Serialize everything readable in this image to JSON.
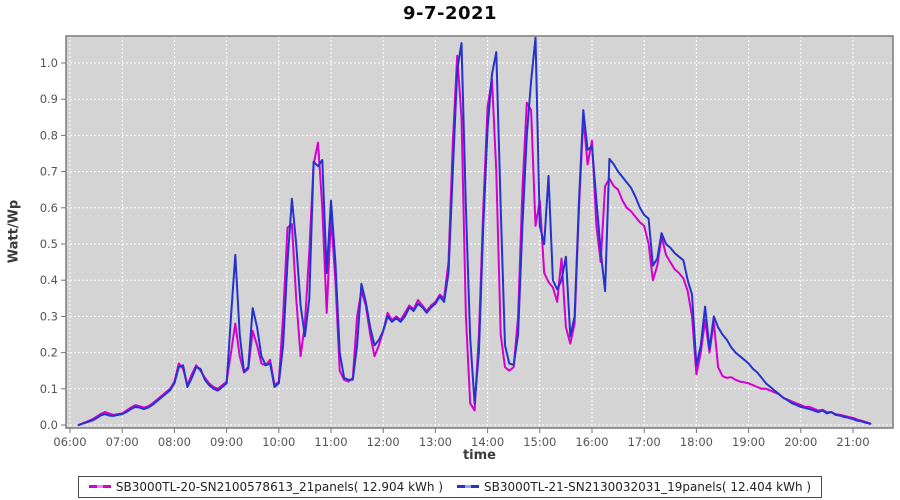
{
  "title": "9-7-2021",
  "colors": {
    "page_bg": "#ffffff",
    "plot_bg": "#d4d4d4",
    "plot_border": "#7a7a7a",
    "grid": "#ffffff",
    "tick": "#777777",
    "tick_label": "#555555",
    "axis_label": "#3a3a3a",
    "series1": "#d400d0",
    "series2": "#2433cc",
    "legend_border": "#4a4a4a"
  },
  "chart_data": {
    "type": "line",
    "title": "9-7-2021",
    "xlabel": "time",
    "ylabel": "Watt/Wp",
    "ylim": [
      0.0,
      1.083
    ],
    "xlim_hours": [
      5.92,
      21.77
    ],
    "grid": true,
    "legend_position": "bottom",
    "y_ticks": [
      "0.0",
      "0.1",
      "0.2",
      "0.3",
      "0.4",
      "0.5",
      "0.6",
      "0.7",
      "0.8",
      "0.9",
      "1.0"
    ],
    "x_ticks": [
      "06:00",
      "07:00",
      "08:00",
      "09:00",
      "10:00",
      "11:00",
      "12:00",
      "13:00",
      "14:00",
      "15:00",
      "16:00",
      "17:00",
      "18:00",
      "19:00",
      "20:00",
      "21:00"
    ],
    "times": [
      "06:10",
      "06:15",
      "06:20",
      "06:25",
      "06:30",
      "06:35",
      "06:40",
      "06:45",
      "06:50",
      "06:55",
      "07:00",
      "07:05",
      "07:10",
      "07:15",
      "07:20",
      "07:25",
      "07:30",
      "07:35",
      "07:40",
      "07:45",
      "07:50",
      "07:55",
      "08:00",
      "08:05",
      "08:10",
      "08:15",
      "08:20",
      "08:25",
      "08:30",
      "08:35",
      "08:40",
      "08:45",
      "08:50",
      "08:55",
      "09:00",
      "09:05",
      "09:10",
      "09:15",
      "09:20",
      "09:25",
      "09:30",
      "09:35",
      "09:40",
      "09:45",
      "09:50",
      "09:55",
      "10:00",
      "10:05",
      "10:10",
      "10:15",
      "10:20",
      "10:25",
      "10:30",
      "10:35",
      "10:40",
      "10:45",
      "10:50",
      "10:55",
      "11:00",
      "11:05",
      "11:10",
      "11:15",
      "11:20",
      "11:25",
      "11:30",
      "11:35",
      "11:40",
      "11:45",
      "11:50",
      "11:55",
      "12:00",
      "12:05",
      "12:10",
      "12:15",
      "12:20",
      "12:25",
      "12:30",
      "12:35",
      "12:40",
      "12:45",
      "12:50",
      "12:55",
      "13:00",
      "13:05",
      "13:10",
      "13:15",
      "13:20",
      "13:25",
      "13:30",
      "13:35",
      "13:40",
      "13:45",
      "13:50",
      "13:55",
      "14:00",
      "14:05",
      "14:10",
      "14:15",
      "14:20",
      "14:25",
      "14:30",
      "14:35",
      "14:40",
      "14:45",
      "14:50",
      "14:55",
      "15:00",
      "15:05",
      "15:10",
      "15:15",
      "15:20",
      "15:25",
      "15:30",
      "15:35",
      "15:40",
      "15:45",
      "15:50",
      "15:55",
      "16:00",
      "16:05",
      "16:10",
      "16:15",
      "16:20",
      "16:25",
      "16:30",
      "16:35",
      "16:40",
      "16:45",
      "16:50",
      "16:55",
      "17:00",
      "17:05",
      "17:10",
      "17:15",
      "17:20",
      "17:25",
      "17:30",
      "17:35",
      "17:40",
      "17:45",
      "17:50",
      "17:55",
      "18:00",
      "18:05",
      "18:10",
      "18:15",
      "18:20",
      "18:25",
      "18:30",
      "18:35",
      "18:40",
      "18:45",
      "18:50",
      "18:55",
      "19:00",
      "19:05",
      "19:10",
      "19:15",
      "19:20",
      "19:25",
      "19:30",
      "19:35",
      "19:40",
      "19:45",
      "19:50",
      "19:55",
      "20:00",
      "20:05",
      "20:10",
      "20:15",
      "20:20",
      "20:25",
      "20:30",
      "20:35",
      "20:40",
      "20:45",
      "20:50",
      "20:55",
      "21:00",
      "21:05",
      "21:10",
      "21:15",
      "21:20"
    ],
    "series": [
      {
        "name": "SB3000TL-20-SN2100578613_21panels( 12.904 kWh )",
        "color": "#d400d0",
        "values": [
          0.0,
          0.005,
          0.01,
          0.015,
          0.022,
          0.03,
          0.036,
          0.032,
          0.028,
          0.03,
          0.032,
          0.04,
          0.048,
          0.055,
          0.052,
          0.048,
          0.052,
          0.06,
          0.07,
          0.08,
          0.09,
          0.1,
          0.12,
          0.17,
          0.155,
          0.11,
          0.14,
          0.165,
          0.15,
          0.13,
          0.115,
          0.105,
          0.1,
          0.11,
          0.12,
          0.2,
          0.28,
          0.19,
          0.145,
          0.155,
          0.26,
          0.22,
          0.17,
          0.165,
          0.18,
          0.11,
          0.12,
          0.3,
          0.545,
          0.555,
          0.35,
          0.19,
          0.28,
          0.48,
          0.72,
          0.78,
          0.6,
          0.31,
          0.575,
          0.4,
          0.15,
          0.125,
          0.12,
          0.13,
          0.3,
          0.37,
          0.33,
          0.25,
          0.19,
          0.22,
          0.26,
          0.31,
          0.29,
          0.3,
          0.29,
          0.31,
          0.33,
          0.32,
          0.345,
          0.33,
          0.315,
          0.33,
          0.34,
          0.36,
          0.35,
          0.45,
          0.78,
          1.02,
          0.85,
          0.3,
          0.06,
          0.04,
          0.25,
          0.6,
          0.88,
          0.955,
          0.7,
          0.25,
          0.16,
          0.15,
          0.16,
          0.3,
          0.65,
          0.89,
          0.87,
          0.55,
          0.62,
          0.42,
          0.395,
          0.38,
          0.34,
          0.46,
          0.27,
          0.225,
          0.28,
          0.6,
          0.85,
          0.72,
          0.785,
          0.55,
          0.45,
          0.66,
          0.68,
          0.66,
          0.65,
          0.62,
          0.6,
          0.59,
          0.575,
          0.56,
          0.55,
          0.5,
          0.4,
          0.44,
          0.52,
          0.47,
          0.45,
          0.43,
          0.42,
          0.405,
          0.37,
          0.3,
          0.14,
          0.2,
          0.29,
          0.2,
          0.285,
          0.16,
          0.135,
          0.13,
          0.132,
          0.125,
          0.12,
          0.118,
          0.115,
          0.11,
          0.105,
          0.1,
          0.1,
          0.095,
          0.09,
          0.085,
          0.075,
          0.07,
          0.065,
          0.06,
          0.055,
          0.05,
          0.05,
          0.045,
          0.04,
          0.042,
          0.035,
          0.036,
          0.03,
          0.028,
          0.025,
          0.022,
          0.02,
          0.015,
          0.012,
          0.008,
          0.004
        ]
      },
      {
        "name": "SB3000TL-21-SN2130032031_19panels( 12.404 kWh )",
        "color": "#2433cc",
        "values": [
          0.0,
          0.004,
          0.008,
          0.012,
          0.018,
          0.026,
          0.03,
          0.026,
          0.025,
          0.028,
          0.03,
          0.036,
          0.044,
          0.05,
          0.048,
          0.044,
          0.048,
          0.056,
          0.066,
          0.076,
          0.086,
          0.096,
          0.115,
          0.16,
          0.165,
          0.105,
          0.13,
          0.16,
          0.155,
          0.125,
          0.11,
          0.1,
          0.095,
          0.105,
          0.115,
          0.3,
          0.47,
          0.25,
          0.147,
          0.16,
          0.323,
          0.27,
          0.19,
          0.165,
          0.17,
          0.105,
          0.115,
          0.22,
          0.45,
          0.625,
          0.5,
          0.33,
          0.245,
          0.35,
          0.727,
          0.715,
          0.732,
          0.42,
          0.62,
          0.45,
          0.2,
          0.13,
          0.125,
          0.125,
          0.22,
          0.39,
          0.34,
          0.27,
          0.22,
          0.235,
          0.26,
          0.3,
          0.285,
          0.295,
          0.285,
          0.3,
          0.325,
          0.315,
          0.335,
          0.325,
          0.31,
          0.325,
          0.335,
          0.355,
          0.34,
          0.42,
          0.7,
          0.98,
          1.055,
          0.6,
          0.24,
          0.06,
          0.2,
          0.55,
          0.82,
          0.97,
          1.03,
          0.6,
          0.22,
          0.17,
          0.166,
          0.25,
          0.55,
          0.8,
          0.95,
          1.07,
          0.55,
          0.5,
          0.688,
          0.4,
          0.375,
          0.4,
          0.465,
          0.245,
          0.3,
          0.62,
          0.87,
          0.76,
          0.77,
          0.62,
          0.48,
          0.37,
          0.735,
          0.72,
          0.7,
          0.685,
          0.67,
          0.655,
          0.63,
          0.6,
          0.58,
          0.57,
          0.44,
          0.46,
          0.53,
          0.5,
          0.49,
          0.475,
          0.465,
          0.455,
          0.4,
          0.36,
          0.165,
          0.22,
          0.327,
          0.21,
          0.3,
          0.27,
          0.25,
          0.235,
          0.215,
          0.2,
          0.19,
          0.18,
          0.17,
          0.155,
          0.145,
          0.13,
          0.115,
          0.105,
          0.095,
          0.085,
          0.075,
          0.068,
          0.06,
          0.055,
          0.05,
          0.047,
          0.044,
          0.04,
          0.036,
          0.04,
          0.032,
          0.036,
          0.028,
          0.026,
          0.022,
          0.02,
          0.016,
          0.012,
          0.01,
          0.006,
          0.003
        ]
      }
    ]
  }
}
